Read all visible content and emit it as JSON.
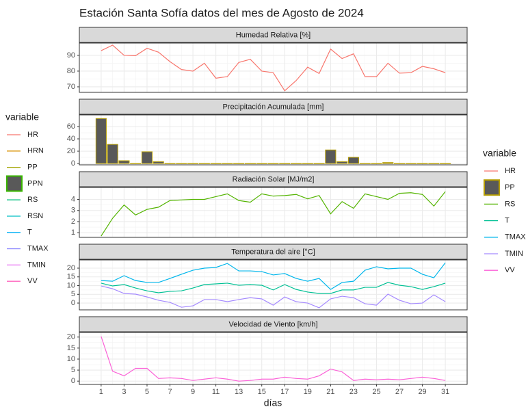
{
  "chart_data": {
    "type": "facet",
    "title": "Estación Santa Sofía datos del mes de Agosto de 2024",
    "xlabel": "días",
    "x": [
      1,
      2,
      3,
      4,
      5,
      6,
      7,
      8,
      9,
      10,
      11,
      12,
      13,
      14,
      15,
      16,
      17,
      18,
      19,
      20,
      21,
      22,
      23,
      24,
      25,
      26,
      27,
      28,
      29,
      30,
      31
    ],
    "xlim": [
      -0.9,
      32.9
    ],
    "xticks": [
      1,
      3,
      5,
      7,
      9,
      11,
      13,
      15,
      17,
      19,
      21,
      23,
      25,
      27,
      29,
      31
    ],
    "grid": true,
    "panels": [
      {
        "type": "line",
        "title": "Humedad Relativa [%]",
        "ylim": [
          66.5,
          97.8
        ],
        "yticks": [
          70,
          80,
          90
        ],
        "series": [
          {
            "name": "HR",
            "color": "#F8766D",
            "values": [
              93,
              96.5,
              90,
              89.8,
              94.5,
              92,
              86,
              81,
              80,
              85,
              75.5,
              76.5,
              85.5,
              87.5,
              80,
              79,
              67.5,
              74,
              82.5,
              78.5,
              94,
              88,
              91,
              76.5,
              76.5,
              85,
              78.7,
              79,
              83,
              81.5,
              79
            ]
          }
        ]
      },
      {
        "type": "bar",
        "title": "Precipitación Acumulada [mm]",
        "ylim": [
          -2.2,
          78.9
        ],
        "yticks": [
          0,
          20,
          40,
          60
        ],
        "fill": "#595959",
        "series": [
          {
            "name": "PP",
            "color": "#B79F00",
            "values": [
              73,
              31,
              4.5,
              0.5,
              19,
              3,
              0.5,
              0.5,
              0.5,
              0.5,
              0.5,
              0.5,
              0.5,
              0.5,
              0.5,
              0.5,
              0.5,
              0.5,
              0.5,
              0.5,
              22,
              3,
              10,
              0.5,
              0.5,
              1.5,
              0.5,
              0.5,
              0.5,
              0.5,
              0.5
            ]
          }
        ]
      },
      {
        "type": "line",
        "title": "Radiación Solar [MJ/m2]",
        "ylim": [
          0.58,
          5.08
        ],
        "yticks": [
          1,
          2,
          3,
          4
        ],
        "series": [
          {
            "name": "RS",
            "color": "#53B400",
            "values": [
              0.7,
              2.3,
              3.5,
              2.6,
              3.1,
              3.3,
              3.9,
              3.95,
              4,
              4,
              4.25,
              4.5,
              3.9,
              3.75,
              4.5,
              4.3,
              4.35,
              4.45,
              4.05,
              4.35,
              2.7,
              3.8,
              3.2,
              4.5,
              4.25,
              4,
              4.55,
              4.6,
              4.45,
              3.4,
              4.7
            ]
          }
        ]
      },
      {
        "type": "line",
        "title": "Temperatura del aire [°C]",
        "ylim": [
          -3.9,
          24.7
        ],
        "yticks": [
          0,
          5,
          10,
          15,
          20
        ],
        "series": [
          {
            "name": "T",
            "color": "#00C094",
            "values": [
              11.4,
              9.8,
              10.6,
              8.6,
              7,
              5.9,
              6.7,
              7,
              8.6,
              10.6,
              11,
              11.4,
              10.2,
              10.6,
              10.2,
              7.5,
              10.6,
              7.8,
              6.3,
              5.5,
              5.5,
              7.5,
              7.5,
              9,
              9,
              11.8,
              10.2,
              9.4,
              7.8,
              9.4,
              11.4
            ]
          },
          {
            "name": "TMAX",
            "color": "#00B6EB",
            "values": [
              12.9,
              12.5,
              15.7,
              12.9,
              11.8,
              11.8,
              14.1,
              16.5,
              18.8,
              20,
              20.4,
              22.7,
              18.4,
              18.4,
              18,
              16.1,
              16.9,
              14.1,
              12.5,
              14.1,
              7.8,
              11.8,
              12.5,
              18.8,
              20.8,
              19.6,
              20,
              20,
              16.5,
              14.5,
              23.1
            ]
          },
          {
            "name": "TMIN",
            "color": "#A58AFF",
            "values": [
              9.8,
              8.2,
              5.5,
              5.1,
              3.5,
              1.6,
              0.4,
              -2.4,
              -1.6,
              2,
              2,
              0.8,
              2,
              3.1,
              2.4,
              -1.2,
              3.5,
              0.8,
              0,
              -2.7,
              2.4,
              3.9,
              3.1,
              -0.4,
              -1.2,
              5.1,
              1.6,
              -0.4,
              0,
              4.7,
              0.8
            ]
          }
        ]
      },
      {
        "type": "line",
        "title": "Velocidad de Viento [km/h]",
        "ylim": [
          -1.5,
          22.1
        ],
        "yticks": [
          0,
          5,
          10,
          15,
          20
        ],
        "series": [
          {
            "name": "VV",
            "color": "#FB61D7",
            "values": [
              20.3,
              4.5,
              2.4,
              5.8,
              5.8,
              1.2,
              1.5,
              1.2,
              0.3,
              0.9,
              1.5,
              0.9,
              0,
              0.3,
              0.9,
              0.9,
              1.8,
              1.2,
              0.9,
              2.4,
              5.5,
              4.2,
              0.3,
              0.9,
              0.6,
              0.9,
              0.6,
              1.2,
              1.8,
              1.2,
              0.3
            ]
          }
        ]
      }
    ],
    "legends": [
      {
        "title": "variable",
        "position": "left",
        "entries": [
          {
            "name": "HR",
            "color": "#F8766D",
            "key": "line"
          },
          {
            "name": "HRN",
            "color": "#D89000",
            "key": "line"
          },
          {
            "name": "PP",
            "color": "#A3A500",
            "key": "line"
          },
          {
            "name": "PPN",
            "color": "#39B600",
            "key": "box"
          },
          {
            "name": "RS",
            "color": "#00BF7D",
            "key": "line"
          },
          {
            "name": "RSN",
            "color": "#00BFC4",
            "key": "line"
          },
          {
            "name": "T",
            "color": "#00B0F6",
            "key": "line"
          },
          {
            "name": "TMAX",
            "color": "#9590FF",
            "key": "line"
          },
          {
            "name": "TMIN",
            "color": "#E76BF3",
            "key": "line"
          },
          {
            "name": "VV",
            "color": "#FF62BC",
            "key": "line"
          }
        ]
      },
      {
        "title": "variable",
        "position": "right",
        "entries": [
          {
            "name": "HR",
            "color": "#F8766D",
            "key": "line"
          },
          {
            "name": "PP",
            "color": "#B79F00",
            "key": "box"
          },
          {
            "name": "RS",
            "color": "#53B400",
            "key": "line"
          },
          {
            "name": "T",
            "color": "#00C094",
            "key": "line"
          },
          {
            "name": "TMAX",
            "color": "#00B6EB",
            "key": "line"
          },
          {
            "name": "TMIN",
            "color": "#A58AFF",
            "key": "line"
          },
          {
            "name": "VV",
            "color": "#FB61D7",
            "key": "line"
          }
        ]
      }
    ]
  }
}
